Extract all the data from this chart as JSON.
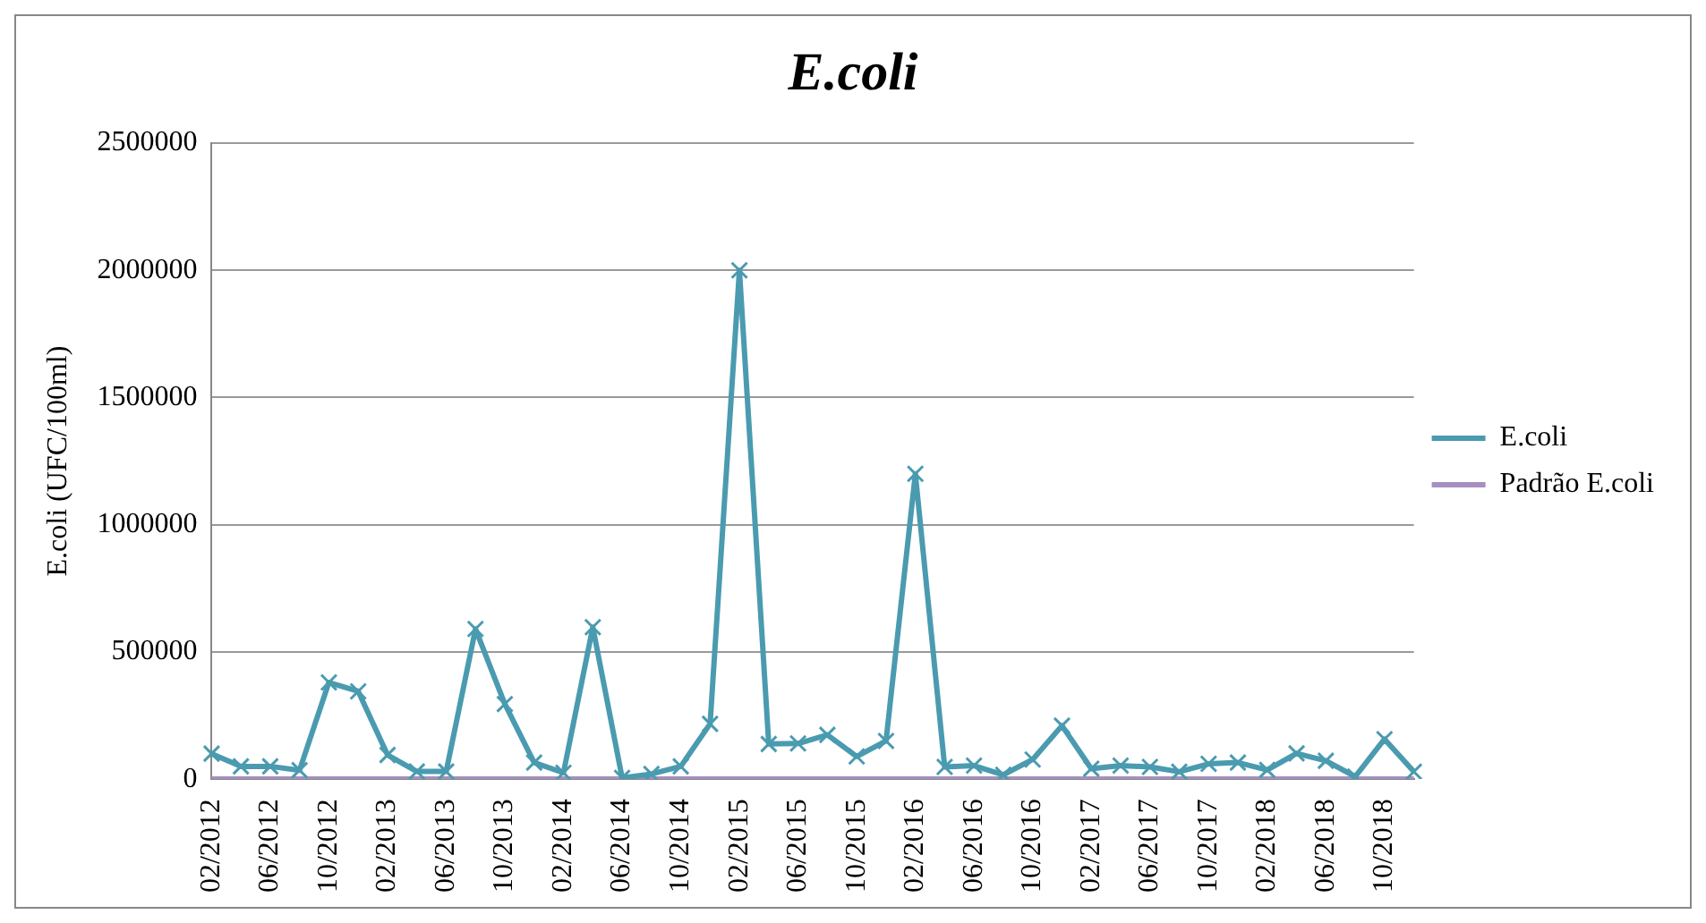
{
  "chart_data": {
    "type": "line",
    "title": "E.coli",
    "ylabel": "E.coli (UFC/100ml)",
    "categories": [
      "02/2012",
      null,
      "06/2012",
      null,
      "10/2012",
      null,
      "02/2013",
      null,
      "06/2013",
      null,
      "10/2013",
      null,
      "02/2014",
      null,
      "06/2014",
      null,
      "10/2014",
      null,
      "02/2015",
      null,
      "06/2015",
      null,
      "10/2015",
      null,
      "02/2016",
      null,
      "06/2016",
      null,
      "10/2016",
      null,
      "02/2017",
      null,
      "06/2017",
      null,
      "10/2017",
      null,
      "02/2018",
      null,
      "06/2018",
      null,
      "10/2018",
      null
    ],
    "series": [
      {
        "name": "E.coli",
        "color": "#4a9bb0",
        "marker": "cross",
        "values": [
          100000,
          50000,
          50000,
          35000,
          380000,
          345000,
          95000,
          30000,
          30000,
          590000,
          295000,
          65000,
          25000,
          597000,
          5000,
          20000,
          50000,
          217000,
          2000000,
          138000,
          140000,
          174000,
          89000,
          150000,
          1200000,
          48000,
          53000,
          17000,
          77000,
          210000,
          41000,
          53000,
          48000,
          29000,
          60000,
          65000,
          36000,
          101000,
          72000,
          10000,
          157000,
          29000
        ]
      },
      {
        "name": "Padrão E.coli",
        "color": "#a590c0",
        "marker": "none",
        "values": [
          0,
          0,
          0,
          0,
          0,
          0,
          0,
          0,
          0,
          0,
          0,
          0,
          0,
          0,
          0,
          0,
          0,
          0,
          0,
          0,
          0,
          0,
          0,
          0,
          0,
          0,
          0,
          0,
          0,
          0,
          0,
          0,
          0,
          0,
          0,
          0,
          0,
          0,
          0,
          0,
          0,
          0
        ]
      }
    ],
    "ylim": [
      0,
      2500000
    ],
    "yticks": [
      0,
      500000,
      1000000,
      1500000,
      2000000,
      2500000
    ],
    "grid": "y",
    "legend": "right"
  }
}
